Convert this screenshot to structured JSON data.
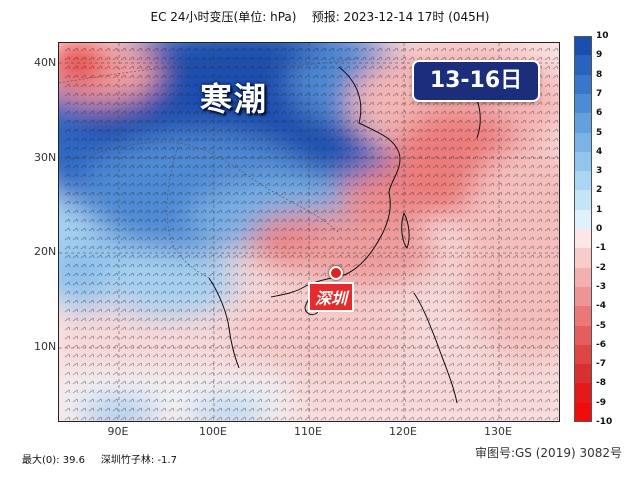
{
  "title": "EC 24小时变压(单位: hPa)    预报: 2023-12-14 17时 (045H)",
  "badge": "13-16日",
  "cold_label": "寒潮",
  "city_label": "深圳",
  "lat_labels": [
    "40N",
    "30N",
    "20N",
    "10N"
  ],
  "lon_labels": [
    "90E",
    "100E",
    "110E",
    "120E",
    "130E"
  ],
  "colorbar": {
    "ticks": [
      "10",
      "9",
      "8",
      "7",
      "6",
      "5",
      "4",
      "3",
      "2",
      "1",
      "0",
      "-1",
      "-2",
      "-3",
      "-4",
      "-5",
      "-6",
      "-7",
      "-8",
      "-9",
      "-10"
    ],
    "colors": [
      "#1a4fb0",
      "#2a62c0",
      "#3a76cc",
      "#4e8bd6",
      "#64a0de",
      "#7ab3e6",
      "#92c5ee",
      "#aad6f4",
      "#c4e5f8",
      "#e0f1fb",
      "#fde6e6",
      "#f9cccc",
      "#f4b0b0",
      "#ef9494",
      "#ea7878",
      "#e45e5e",
      "#de4646",
      "#d83030",
      "#e41a1a",
      "#f00c0c"
    ]
  },
  "footer": {
    "stats": "最大(0): 39.6     深圳竹子林: -1.7",
    "approval": "审图号:GS (2019) 3082号"
  }
}
